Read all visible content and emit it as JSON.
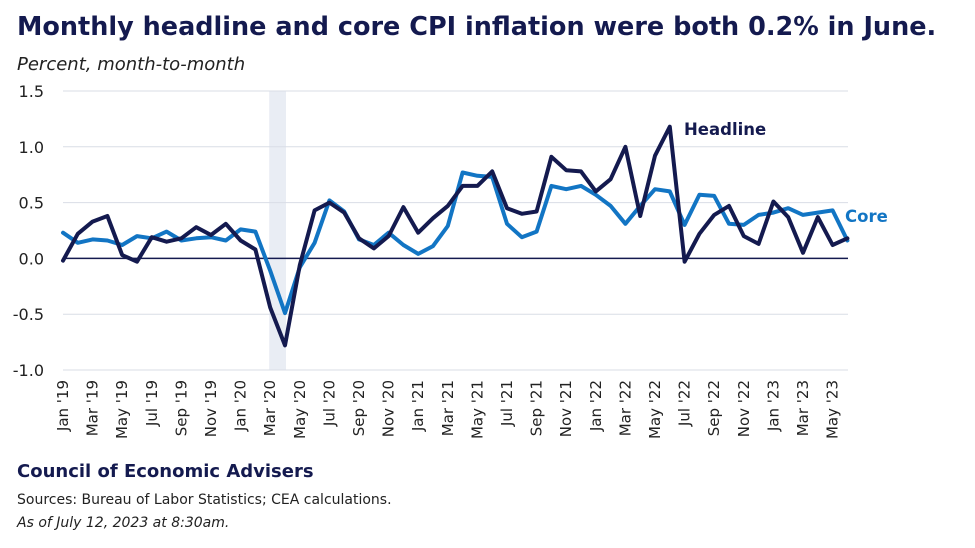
{
  "header": {
    "title": "Monthly headline and core CPI inflation were both 0.2% in June.",
    "subtitle": "Percent, month-to-month"
  },
  "footer": {
    "org": "Council of Economic Advisers",
    "sources": "Sources: Bureau of Labor Statistics; CEA calculations.",
    "as_of": "As of July 12, 2023 at 8:30am."
  },
  "colors": {
    "headline": "#141a4f",
    "core": "#1275c4",
    "recession_band": "#e9edf4",
    "gridline": "#d9dde6",
    "zero_line": "#141a4f"
  },
  "chart_data": {
    "type": "line",
    "title": "Monthly headline and core CPI inflation were both 0.2% in June.",
    "ylabel": "Percent, month-to-month",
    "ylim": [
      -1.0,
      1.5
    ],
    "yticks": [
      1.5,
      1.0,
      0.5,
      0.0,
      -0.5,
      -1.0
    ],
    "ytick_labels": [
      "1.5",
      "1.0",
      "0.5",
      "0.0",
      "-0.5",
      "-1.0"
    ],
    "grid": true,
    "shaded_periods": [
      {
        "start": "Mar '20",
        "end": "Apr '20"
      }
    ],
    "x": [
      "Jan '19",
      "Feb '19",
      "Mar '19",
      "Apr '19",
      "May '19",
      "Jun '19",
      "Jul '19",
      "Aug '19",
      "Sep '19",
      "Oct '19",
      "Nov '19",
      "Dec '19",
      "Jan '20",
      "Feb '20",
      "Mar '20",
      "Apr '20",
      "May '20",
      "Jun '20",
      "Jul '20",
      "Aug '20",
      "Sep '20",
      "Oct '20",
      "Nov '20",
      "Dec '20",
      "Jan '21",
      "Feb '21",
      "Mar '21",
      "Apr '21",
      "May '21",
      "Jun '21",
      "Jul '21",
      "Aug '21",
      "Sep '21",
      "Oct '21",
      "Nov '21",
      "Dec '21",
      "Jan '22",
      "Feb '22",
      "Mar '22",
      "Apr '22",
      "May '22",
      "Jun '22",
      "Jul '22",
      "Aug '22",
      "Sep '22",
      "Oct '22",
      "Nov '22",
      "Dec '22",
      "Jan '23",
      "Feb '23",
      "Mar '23",
      "Apr '23",
      "May '23",
      "Jun '23"
    ],
    "x_tick_labels": [
      "Jan '19",
      "Mar '19",
      "May '19",
      "Jul '19",
      "Sep '19",
      "Nov '19",
      "Jan '20",
      "Mar '20",
      "May '20",
      "Jul '20",
      "Sep '20",
      "Nov '20",
      "Jan '21",
      "Mar '21",
      "May '21",
      "Jul '21",
      "Sep '21",
      "Nov '21",
      "Jan '22",
      "Mar '22",
      "May '22",
      "Jul '22",
      "Sep '22",
      "Nov '22",
      "Jan '23",
      "Mar '23",
      "May '23"
    ],
    "series": [
      {
        "name": "Headline",
        "color": "#141a4f",
        "values": [
          -0.02,
          0.22,
          0.33,
          0.38,
          0.03,
          -0.03,
          0.19,
          0.15,
          0.18,
          0.28,
          0.21,
          0.31,
          0.16,
          0.08,
          -0.44,
          -0.78,
          -0.06,
          0.43,
          0.5,
          0.41,
          0.18,
          0.09,
          0.2,
          0.46,
          0.23,
          0.36,
          0.47,
          0.65,
          0.65,
          0.78,
          0.45,
          0.4,
          0.42,
          0.91,
          0.79,
          0.78,
          0.6,
          0.71,
          1.0,
          0.38,
          0.92,
          1.18,
          -0.03,
          0.22,
          0.39,
          0.47,
          0.2,
          0.13,
          0.51,
          0.37,
          0.05,
          0.37,
          0.12,
          0.18
        ]
      },
      {
        "name": "Core",
        "color": "#1275c4",
        "values": [
          0.23,
          0.14,
          0.17,
          0.16,
          0.12,
          0.2,
          0.18,
          0.24,
          0.16,
          0.18,
          0.19,
          0.16,
          0.26,
          0.24,
          -0.11,
          -0.49,
          -0.08,
          0.14,
          0.52,
          0.42,
          0.17,
          0.12,
          0.23,
          0.12,
          0.04,
          0.11,
          0.29,
          0.77,
          0.74,
          0.73,
          0.31,
          0.19,
          0.24,
          0.65,
          0.62,
          0.65,
          0.57,
          0.47,
          0.31,
          0.47,
          0.62,
          0.6,
          0.3,
          0.57,
          0.56,
          0.31,
          0.3,
          0.39,
          0.41,
          0.45,
          0.39,
          0.41,
          0.43,
          0.16
        ]
      }
    ],
    "annotations": [
      {
        "text": "Headline",
        "series": "Headline"
      },
      {
        "text": "Core",
        "series": "Core"
      }
    ]
  }
}
